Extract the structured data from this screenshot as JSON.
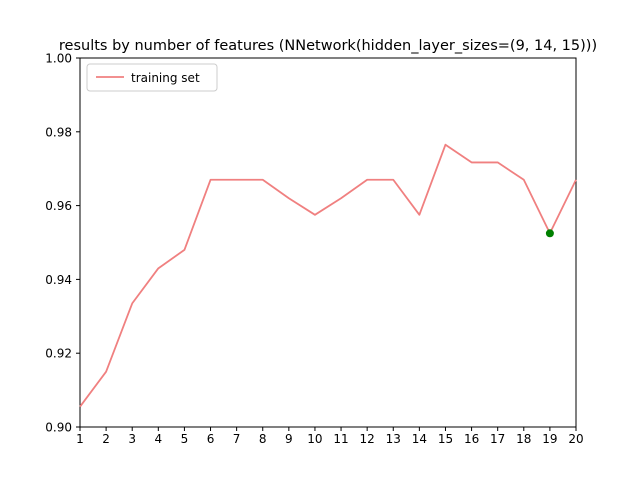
{
  "chart_data": {
    "type": "line",
    "title": "results by number of features (NNetwork(hidden_layer_sizes=(9, 14, 15)))",
    "xlabel": "",
    "ylabel": "",
    "xlim": [
      1,
      20
    ],
    "ylim": [
      0.9,
      1.0
    ],
    "x_ticks": [
      1,
      2,
      3,
      4,
      5,
      6,
      7,
      8,
      9,
      10,
      11,
      12,
      13,
      14,
      15,
      16,
      17,
      18,
      19,
      20
    ],
    "y_ticks": [
      0.9,
      0.92,
      0.94,
      0.96,
      0.98,
      1.0
    ],
    "y_tick_labels": [
      "0.90",
      "0.92",
      "0.94",
      "0.96",
      "0.98",
      "1.00"
    ],
    "grid": false,
    "legend_position": "upper-left",
    "series": [
      {
        "name": "training set",
        "color": "#f08080",
        "x": [
          1,
          2,
          3,
          4,
          5,
          6,
          7,
          8,
          9,
          10,
          11,
          12,
          13,
          14,
          15,
          16,
          17,
          18,
          19,
          20
        ],
        "y": [
          0.9055,
          0.915,
          0.9335,
          0.943,
          0.948,
          0.967,
          0.967,
          0.967,
          0.962,
          0.9575,
          0.962,
          0.967,
          0.967,
          0.9575,
          0.9765,
          0.9717,
          0.9717,
          0.967,
          0.9525,
          0.967
        ]
      }
    ],
    "highlight_point": {
      "x": 19,
      "y": 0.9525,
      "color": "#008000"
    }
  }
}
